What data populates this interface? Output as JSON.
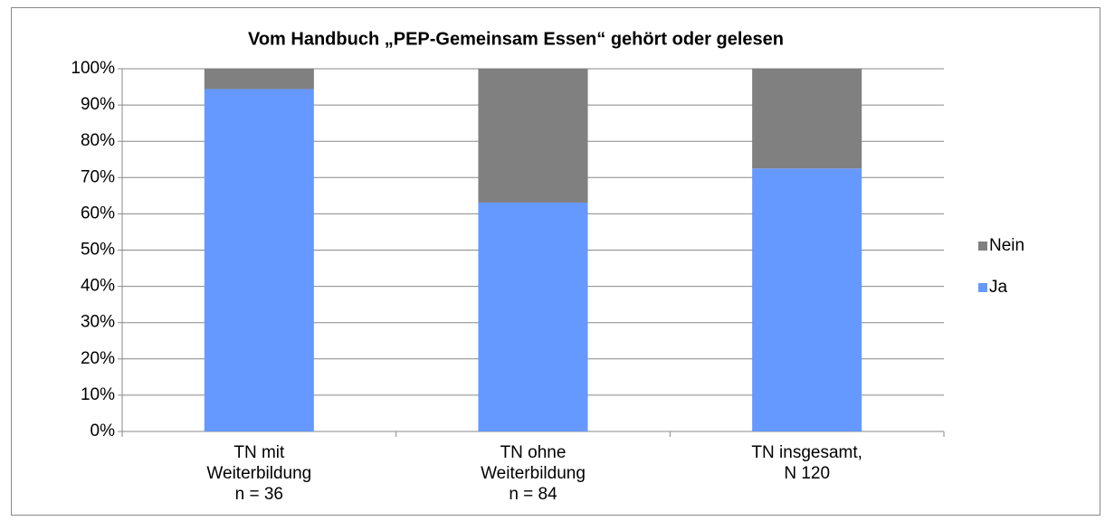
{
  "chart_data": {
    "type": "stacked_bar",
    "title": "Vom Handbuch „PEP-Gemeinsam Essen“ gehört oder gelesen",
    "categories": [
      [
        "TN mit",
        "Weiterbildung",
        "n = 36"
      ],
      [
        "TN ohne",
        "Weiterbildung",
        "n = 84"
      ],
      [
        "TN insgesamt,",
        "N 120"
      ]
    ],
    "series": [
      {
        "name": "Ja",
        "color": "#6699ff",
        "values": [
          94.4,
          63.1,
          72.5
        ]
      },
      {
        "name": "Nein",
        "color": "#808080",
        "values": [
          5.6,
          36.9,
          27.5
        ]
      }
    ],
    "ylim": [
      0,
      100
    ],
    "yticks": [
      {
        "value": 0,
        "label": "0%"
      },
      {
        "value": 10,
        "label": "10%"
      },
      {
        "value": 20,
        "label": "20%"
      },
      {
        "value": 30,
        "label": "30%"
      },
      {
        "value": 40,
        "label": "40%"
      },
      {
        "value": 50,
        "label": "50%"
      },
      {
        "value": 60,
        "label": "60%"
      },
      {
        "value": 70,
        "label": "70%"
      },
      {
        "value": 80,
        "label": "80%"
      },
      {
        "value": 90,
        "label": "90%"
      },
      {
        "value": 100,
        "label": "100%"
      }
    ],
    "grid": true,
    "legend": "right"
  }
}
